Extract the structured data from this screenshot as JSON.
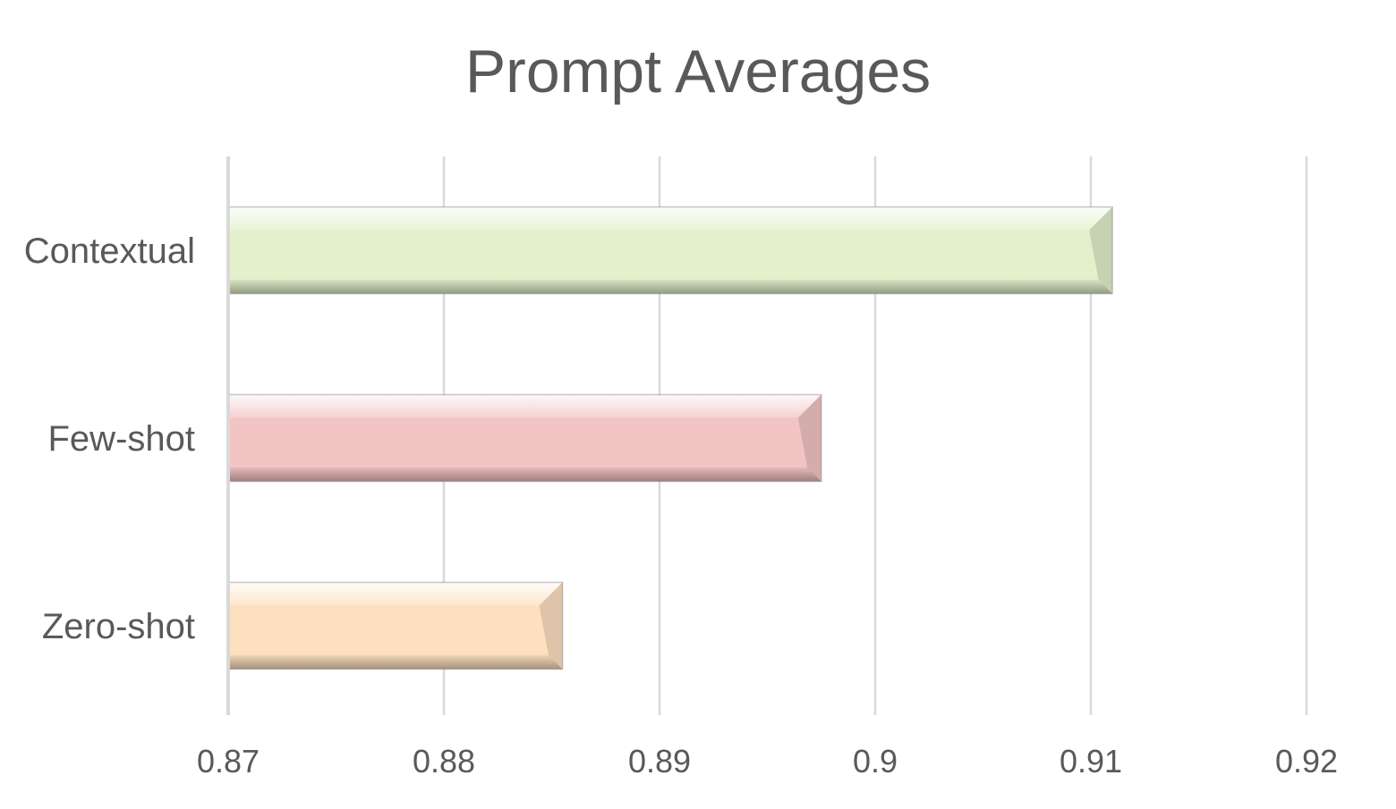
{
  "chart_data": {
    "type": "bar",
    "orientation": "horizontal",
    "title": "Prompt Averages",
    "categories": [
      "Contextual",
      "Few-shot",
      "Zero-shot"
    ],
    "values": [
      0.911,
      0.8975,
      0.8855
    ],
    "colors": [
      "#e2f0cb",
      "#f3c4c4",
      "#fde0c0"
    ],
    "xlim": [
      0.87,
      0.92
    ],
    "xticks": [
      "0.87",
      "0.88",
      "0.89",
      "0.9",
      "0.91",
      "0.92"
    ],
    "grid": "vertical",
    "legend": "none"
  }
}
